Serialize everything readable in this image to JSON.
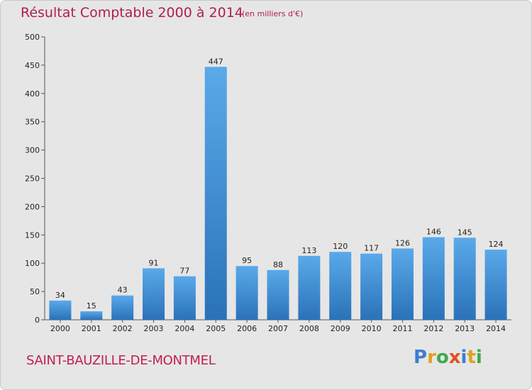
{
  "title": "Résultat Comptable 2000 à 2014",
  "subtitle": "(en milliers d'€)",
  "place": "SAINT-BAUZILLE-DE-MONTMEL",
  "logo": {
    "text": "Proxiti",
    "letters": [
      {
        "ch": "P",
        "color": "#3a7fd0"
      },
      {
        "ch": "r",
        "color": "#e0a020"
      },
      {
        "ch": "o",
        "color": "#3fa84a"
      },
      {
        "ch": "x",
        "color": "#e05020"
      },
      {
        "ch": "i",
        "color": "#3a7fd0"
      },
      {
        "ch": "t",
        "color": "#e0a020"
      },
      {
        "ch": "i",
        "color": "#3fa84a"
      }
    ]
  },
  "colors": {
    "bar_light": "#5aa9ea",
    "bar_dark": "#2a72b8",
    "axis": "#555555",
    "text": "#222222"
  },
  "chart_data": {
    "type": "bar",
    "categories": [
      "2000",
      "2001",
      "2002",
      "2003",
      "2004",
      "2005",
      "2006",
      "2007",
      "2008",
      "2009",
      "2010",
      "2011",
      "2012",
      "2013",
      "2014"
    ],
    "values": [
      34,
      15,
      43,
      91,
      77,
      447,
      95,
      88,
      113,
      120,
      117,
      126,
      146,
      145,
      124
    ],
    "ylim": [
      0,
      500
    ],
    "yticks": [
      0,
      50,
      100,
      150,
      200,
      250,
      300,
      350,
      400,
      450,
      500
    ],
    "title": "Résultat Comptable 2000 à 2014",
    "xlabel": "",
    "ylabel": "",
    "grid": false,
    "legend": "none"
  }
}
